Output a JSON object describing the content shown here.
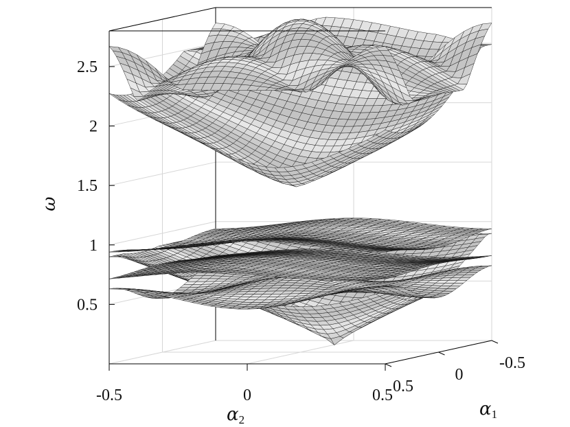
{
  "chart_data": {
    "type": "surface",
    "title": "",
    "xlabel": "α",
    "xlabel_sub": "2",
    "ylabel": "α",
    "ylabel_sub": "1",
    "zlabel": "ω",
    "xlim": [
      -0.5,
      0.5
    ],
    "ylim": [
      -0.5,
      0.5
    ],
    "zlim": [
      0,
      2.8
    ],
    "x_ticks": [
      "-0.5",
      "0",
      "0.5"
    ],
    "y_ticks": [
      "0.5",
      "0",
      "-0.5"
    ],
    "z_ticks": [
      "0.5",
      "1",
      "1.5",
      "2",
      "2.5"
    ],
    "grid": true,
    "surface_color": "#ffffff",
    "mesh_color": "#111111",
    "series": [
      {
        "name": "",
        "peak": 0.9,
        "min": 0.1,
        "min_at": [
          0.2,
          0.2
        ]
      },
      {
        "name": "",
        "peak": 0.65,
        "min": 0.45
      },
      {
        "name": "",
        "peak": 0.8,
        "min": 0.7
      },
      {
        "name": "",
        "peak": 1.03,
        "min": 0.88
      },
      {
        "name": "",
        "peak": 2.75,
        "min": 1.45,
        "min_at": [
          0.1,
          0.3
        ]
      },
      {
        "name": "",
        "peak": 2.8,
        "min": 1.9
      }
    ]
  }
}
